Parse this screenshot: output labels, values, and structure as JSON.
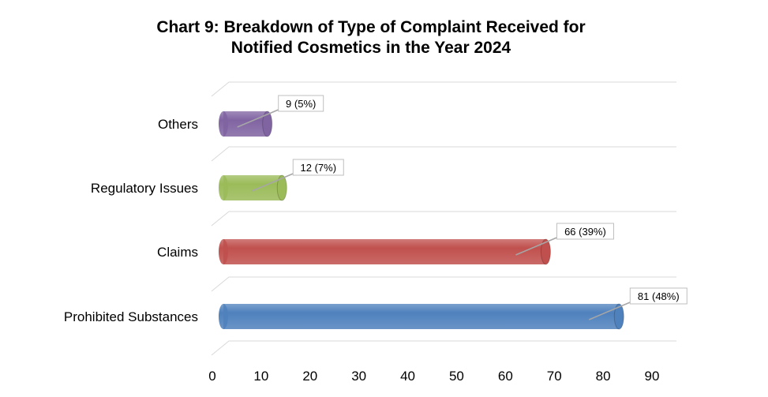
{
  "chart_data": {
    "type": "bar",
    "orientation": "horizontal",
    "title": "Chart 9: Breakdown of Type of Complaint Received for",
    "subtitle": "Notified Cosmetics in the Year 2024",
    "categories": [
      "Prohibited Substances",
      "Claims",
      "Regulatory Issues",
      "Others"
    ],
    "values": [
      81,
      66,
      12,
      9
    ],
    "data_labels": [
      "81 (48%)",
      "66 (39%)",
      "12 (7%)",
      "9 (5%)"
    ],
    "colors": [
      "#4F81BD",
      "#C0504D",
      "#9BBB59",
      "#8064A2"
    ],
    "xlim": [
      0,
      90
    ],
    "xticks": [
      0,
      10,
      20,
      30,
      40,
      50,
      60,
      70,
      80,
      90
    ],
    "xtick_labels": [
      "0",
      "10",
      "20",
      "30",
      "40",
      "50",
      "60",
      "70",
      "80",
      "90"
    ],
    "grid": true,
    "legend": "none"
  }
}
